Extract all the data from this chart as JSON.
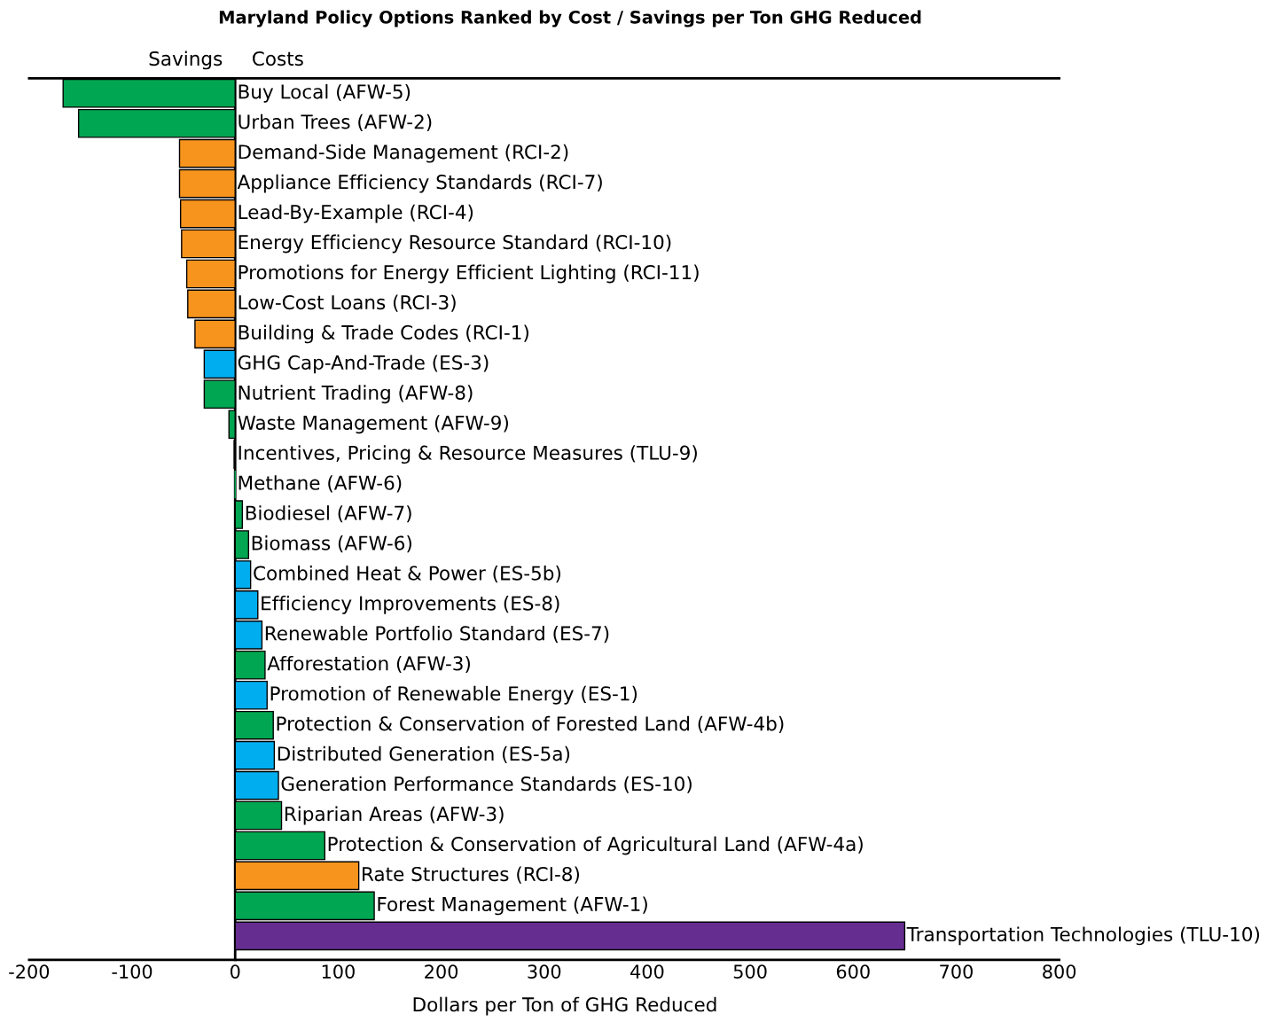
{
  "chart_data": {
    "type": "bar",
    "orientation": "horizontal",
    "title": "Maryland Policy Options Ranked by Cost / Savings per Ton GHG Reduced",
    "xlabel": "Dollars per Ton of GHG Reduced",
    "categories": [
      "Buy Local (AFW-5)",
      "Urban Trees (AFW-2)",
      "Demand-Side Management (RCI-2)",
      "Appliance Efficiency Standards (RCI-7)",
      "Lead-By-Example (RCI-4)",
      "Energy Efficiency Resource Standard (RCI-10)",
      "Promotions for Energy Efficient Lighting (RCI-11)",
      "Low-Cost Loans (RCI-3)",
      "Building & Trade Codes (RCI-1)",
      "GHG Cap-And-Trade (ES-3)",
      "Nutrient Trading (AFW-8)",
      "Waste Management (AFW-9)",
      "Incentives, Pricing & Resource Measures (TLU-9)",
      "Methane (AFW-6)",
      "Biodiesel (AFW-7)",
      "Biomass (AFW-6)",
      "Combined Heat & Power (ES-5b)",
      "Efficiency Improvements (ES-8)",
      "Renewable Portfolio Standard (ES-7)",
      "Afforestation (AFW-3)",
      "Promotion of Renewable Energy (ES-1)",
      "Protection & Conservation of Forested Land (AFW-4b)",
      "Distributed Generation (ES-5a)",
      "Generation Performance Standards (ES-10)",
      "Riparian Areas (AFW-3)",
      "Protection & Conservation of Agricultural Land (AFW-4a)",
      "Rate Structures (RCI-8)",
      "Forest Management (AFW-1)",
      "Transportation Technologies (TLU-10)"
    ],
    "values": [
      -167,
      -152,
      -54,
      -54,
      -53,
      -52,
      -47,
      -46,
      -39,
      -30,
      -30,
      -6,
      -1,
      0,
      7,
      13,
      15,
      22,
      26,
      29,
      31,
      37,
      38,
      42,
      45,
      87,
      120,
      135,
      650
    ],
    "colors": [
      "#00a651",
      "#00a651",
      "#f7941d",
      "#f7941d",
      "#f7941d",
      "#f7941d",
      "#f7941d",
      "#f7941d",
      "#f7941d",
      "#00aeef",
      "#00a651",
      "#00a651",
      "#00a651",
      "#00a651",
      "#00a651",
      "#00a651",
      "#00aeef",
      "#00aeef",
      "#00aeef",
      "#00a651",
      "#00aeef",
      "#00a651",
      "#00aeef",
      "#00aeef",
      "#00a651",
      "#00a651",
      "#f7941d",
      "#00a651",
      "#662d91"
    ],
    "annotations": [
      "Savings",
      "Costs"
    ],
    "xlim": [
      -200,
      800
    ],
    "xticks": [
      -200,
      -100,
      0,
      100,
      200,
      300,
      400,
      500,
      600,
      700,
      800
    ],
    "tick_labels": "x",
    "grid": false,
    "legend": false
  }
}
